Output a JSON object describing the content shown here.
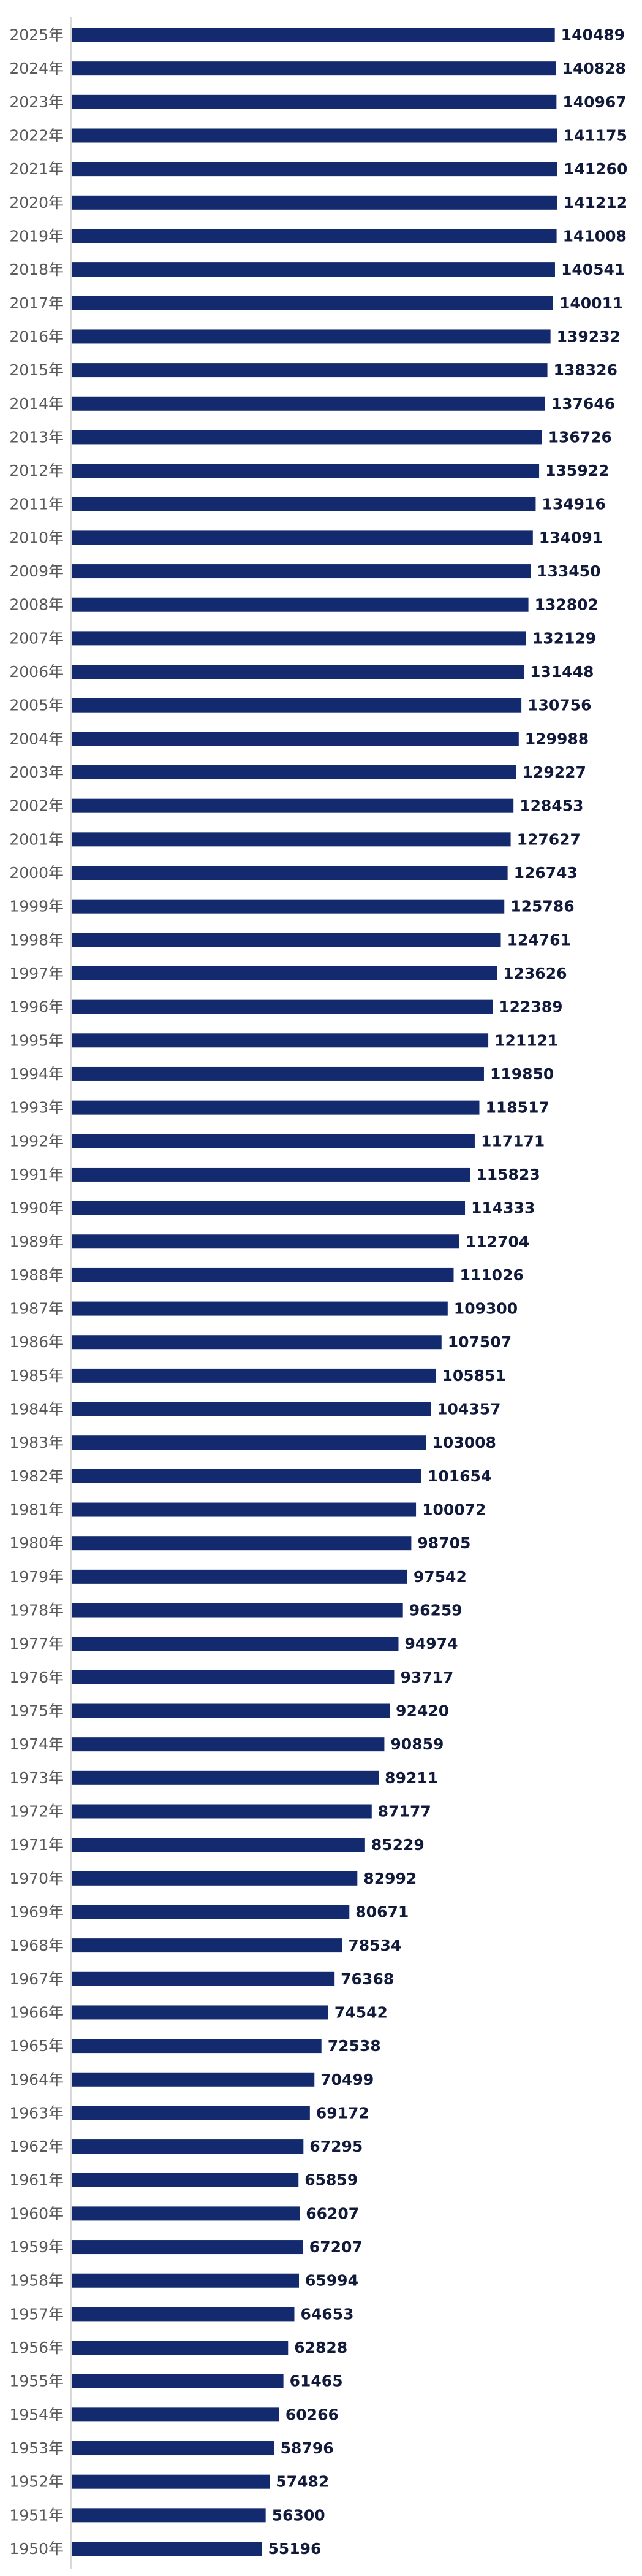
{
  "chart_data": {
    "type": "bar",
    "orientation": "horizontal",
    "bar_color": "#132a6e",
    "label_color": "#111a3a",
    "category_color": "#5a5a5a",
    "categories": [
      "2025年",
      "2024年",
      "2023年",
      "2022年",
      "2021年",
      "2020年",
      "2019年",
      "2018年",
      "2017年",
      "2016年",
      "2015年",
      "2014年",
      "2013年",
      "2012年",
      "2011年",
      "2010年",
      "2009年",
      "2008年",
      "2007年",
      "2006年",
      "2005年",
      "2004年",
      "2003年",
      "2002年",
      "2001年",
      "2000年",
      "1999年",
      "1998年",
      "1997年",
      "1996年",
      "1995年",
      "1994年",
      "1993年",
      "1992年",
      "1991年",
      "1990年",
      "1989年",
      "1988年",
      "1987年",
      "1986年",
      "1985年",
      "1984年",
      "1983年",
      "1982年",
      "1981年",
      "1980年",
      "1979年",
      "1978年",
      "1977年",
      "1976年",
      "1975年",
      "1974年",
      "1973年",
      "1972年",
      "1971年",
      "1970年",
      "1969年",
      "1968年",
      "1967年",
      "1966年",
      "1965年",
      "1964年",
      "1963年",
      "1962年",
      "1961年",
      "1960年",
      "1959年",
      "1958年",
      "1957年",
      "1956年",
      "1955年",
      "1954年",
      "1953年",
      "1952年",
      "1951年",
      "1950年"
    ],
    "values": [
      140489,
      140828,
      140967,
      141175,
      141260,
      141212,
      141008,
      140541,
      140011,
      139232,
      138326,
      137646,
      136726,
      135922,
      134916,
      134091,
      133450,
      132802,
      132129,
      131448,
      130756,
      129988,
      129227,
      128453,
      127627,
      126743,
      125786,
      124761,
      123626,
      122389,
      121121,
      119850,
      118517,
      117171,
      115823,
      114333,
      112704,
      111026,
      109300,
      107507,
      105851,
      104357,
      103008,
      101654,
      100072,
      98705,
      97542,
      96259,
      94974,
      93717,
      92420,
      90859,
      89211,
      87177,
      85229,
      82992,
      80671,
      78534,
      76368,
      74542,
      72538,
      70499,
      69172,
      67295,
      65859,
      66207,
      67207,
      65994,
      64653,
      62828,
      61465,
      60266,
      58796,
      57482,
      56300,
      55196
    ],
    "xlim": [
      0,
      141260
    ],
    "grid": false,
    "legend": "none"
  }
}
